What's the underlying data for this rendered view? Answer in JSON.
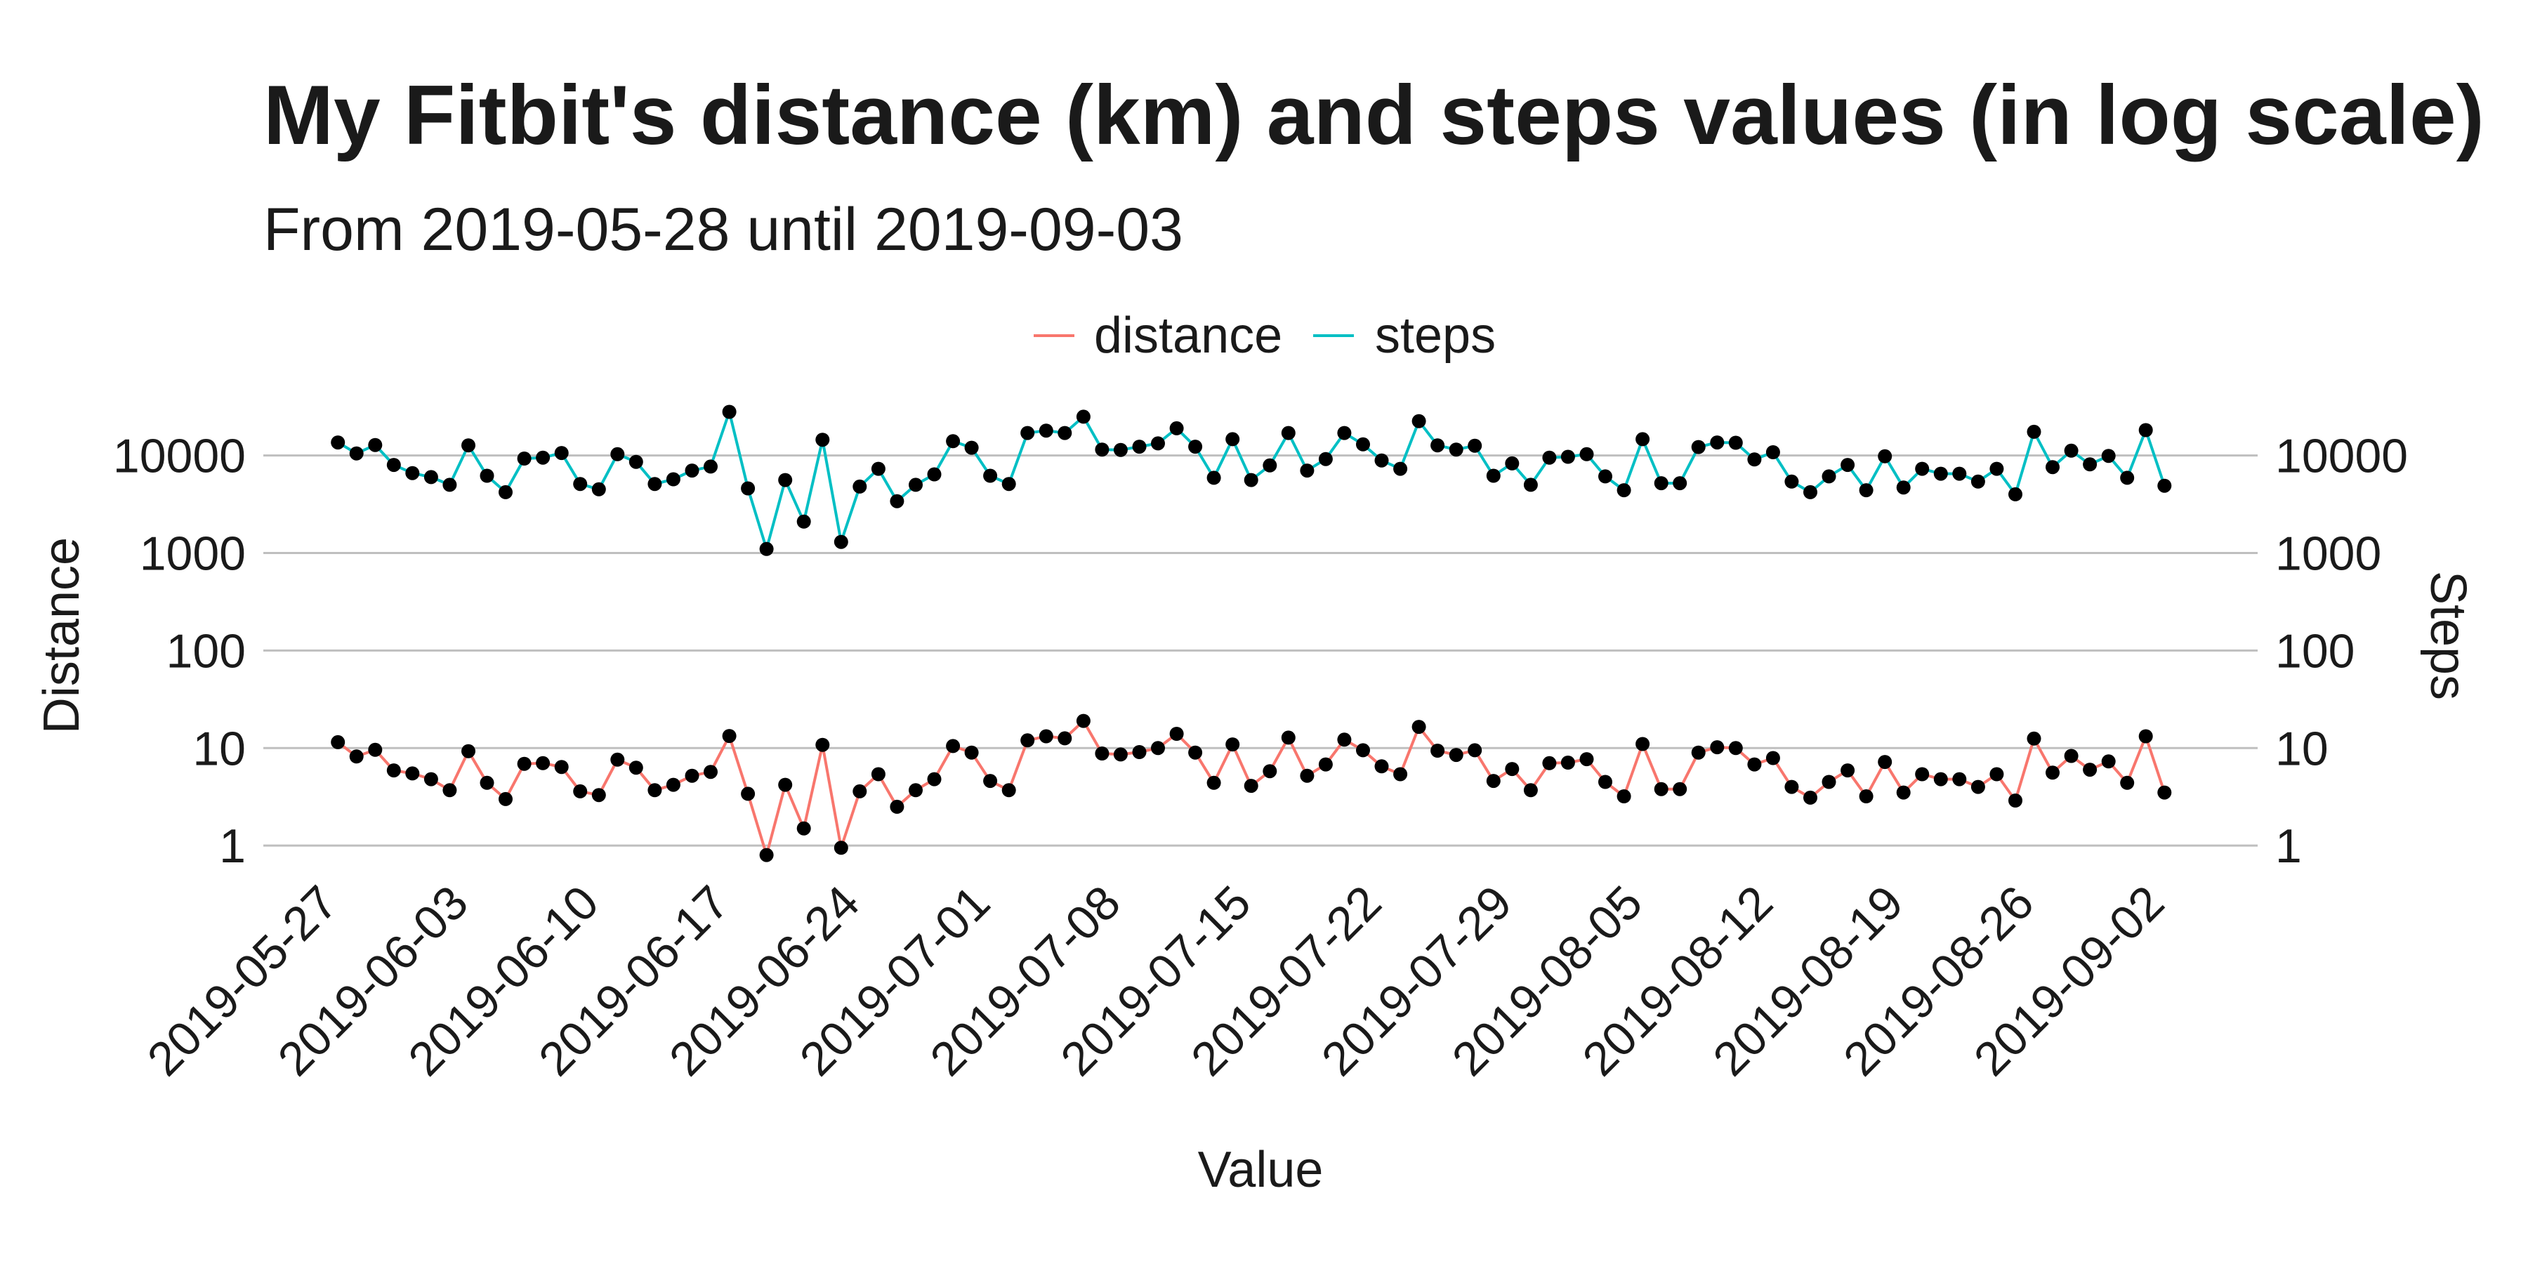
{
  "chart_data": {
    "type": "line",
    "title": "My Fitbit's distance (km) and steps values (in log scale)",
    "subtitle": "From 2019-05-28 until 2019-09-03",
    "xlabel": "Value",
    "ylabel_left": "Distance",
    "ylabel_right": "Steps",
    "y_scale": "log10",
    "ylim": [
      0.6,
      40000
    ],
    "y_ticks": [
      1,
      10,
      100,
      1000,
      10000
    ],
    "y_tick_labels": [
      "1",
      "10",
      "100",
      "1000",
      "10000"
    ],
    "x_ticks": [
      "2019-05-27",
      "2019-06-03",
      "2019-06-10",
      "2019-06-17",
      "2019-06-24",
      "2019-07-01",
      "2019-07-08",
      "2019-07-15",
      "2019-07-22",
      "2019-07-29",
      "2019-08-05",
      "2019-08-12",
      "2019-08-19",
      "2019-08-26",
      "2019-09-02"
    ],
    "xlim": [
      "2019-05-24",
      "2019-09-08"
    ],
    "grid": "horizontal major",
    "legend_position": "top",
    "x": [
      "2019-05-28",
      "2019-05-29",
      "2019-05-30",
      "2019-05-31",
      "2019-06-01",
      "2019-06-02",
      "2019-06-03",
      "2019-06-04",
      "2019-06-05",
      "2019-06-06",
      "2019-06-07",
      "2019-06-08",
      "2019-06-09",
      "2019-06-10",
      "2019-06-11",
      "2019-06-12",
      "2019-06-13",
      "2019-06-14",
      "2019-06-15",
      "2019-06-16",
      "2019-06-17",
      "2019-06-18",
      "2019-06-19",
      "2019-06-20",
      "2019-06-21",
      "2019-06-22",
      "2019-06-23",
      "2019-06-24",
      "2019-06-25",
      "2019-06-26",
      "2019-06-27",
      "2019-06-28",
      "2019-06-29",
      "2019-06-30",
      "2019-07-01",
      "2019-07-02",
      "2019-07-03",
      "2019-07-04",
      "2019-07-05",
      "2019-07-06",
      "2019-07-07",
      "2019-07-08",
      "2019-07-09",
      "2019-07-10",
      "2019-07-11",
      "2019-07-12",
      "2019-07-13",
      "2019-07-14",
      "2019-07-15",
      "2019-07-16",
      "2019-07-17",
      "2019-07-18",
      "2019-07-19",
      "2019-07-20",
      "2019-07-21",
      "2019-07-22",
      "2019-07-23",
      "2019-07-24",
      "2019-07-25",
      "2019-07-26",
      "2019-07-27",
      "2019-07-28",
      "2019-07-29",
      "2019-07-30",
      "2019-07-31",
      "2019-08-01",
      "2019-08-02",
      "2019-08-03",
      "2019-08-04",
      "2019-08-05",
      "2019-08-06",
      "2019-08-07",
      "2019-08-08",
      "2019-08-09",
      "2019-08-10",
      "2019-08-11",
      "2019-08-12",
      "2019-08-13",
      "2019-08-14",
      "2019-08-15",
      "2019-08-16",
      "2019-08-17",
      "2019-08-18",
      "2019-08-19",
      "2019-08-20",
      "2019-08-21",
      "2019-08-22",
      "2019-08-23",
      "2019-08-24",
      "2019-08-25",
      "2019-08-26",
      "2019-08-27",
      "2019-08-28",
      "2019-08-29",
      "2019-08-30",
      "2019-08-31",
      "2019-09-01",
      "2019-09-02",
      "2019-09-03"
    ],
    "series": [
      {
        "name": "distance",
        "color": "#F8766D",
        "values": [
          11.5,
          8.2,
          9.6,
          5.9,
          5.5,
          4.8,
          3.7,
          9.3,
          4.4,
          3.0,
          6.9,
          7.0,
          6.4,
          3.6,
          3.3,
          7.6,
          6.3,
          3.7,
          4.2,
          5.2,
          5.7,
          13.3,
          3.4,
          0.8,
          4.2,
          1.5,
          10.8,
          0.95,
          3.6,
          5.4,
          2.5,
          3.7,
          4.8,
          10.5,
          9.0,
          4.6,
          3.7,
          12.0,
          13.2,
          12.6,
          19.0,
          8.8,
          8.6,
          9.1,
          10.0,
          14.0,
          9.0,
          4.4,
          10.9,
          4.1,
          5.8,
          12.8,
          5.2,
          6.8,
          12.2,
          9.5,
          6.5,
          5.4,
          16.5,
          9.4,
          8.5,
          9.5,
          4.6,
          6.1,
          3.7,
          7.0,
          7.1,
          7.7,
          4.5,
          3.2,
          11.0,
          3.8,
          3.8,
          9.0,
          10.2,
          10.0,
          6.8,
          7.9,
          4.0,
          3.1,
          4.5,
          5.9,
          3.2,
          7.2,
          3.5,
          5.4,
          4.8,
          4.8,
          4.0,
          5.4,
          2.9,
          12.5,
          5.6,
          8.3,
          6.0,
          7.3,
          4.4,
          13.2,
          3.5
        ]
      },
      {
        "name": "steps",
        "color": "#00BFC4",
        "values": [
          13600,
          10500,
          12800,
          8000,
          6600,
          6000,
          5000,
          12700,
          6200,
          4200,
          9300,
          9500,
          10600,
          5100,
          4500,
          10300,
          8600,
          5100,
          5700,
          7000,
          7700,
          28000,
          4600,
          1100,
          5600,
          2100,
          14500,
          1300,
          4800,
          7300,
          3400,
          5000,
          6400,
          14000,
          12000,
          6200,
          5100,
          17000,
          18000,
          17000,
          25000,
          11500,
          11400,
          12300,
          13300,
          19000,
          12300,
          5900,
          14700,
          5600,
          7900,
          17000,
          7000,
          9200,
          17000,
          13000,
          8900,
          7300,
          22500,
          12700,
          11500,
          12600,
          6200,
          8300,
          5000,
          9500,
          9700,
          10300,
          6100,
          4400,
          14700,
          5200,
          5200,
          12200,
          13600,
          13500,
          9100,
          10800,
          5400,
          4200,
          6100,
          8000,
          4400,
          9800,
          4700,
          7300,
          6500,
          6500,
          5400,
          7300,
          4000,
          17500,
          7600,
          11200,
          8100,
          9900,
          5900,
          18200,
          4900
        ]
      }
    ]
  }
}
